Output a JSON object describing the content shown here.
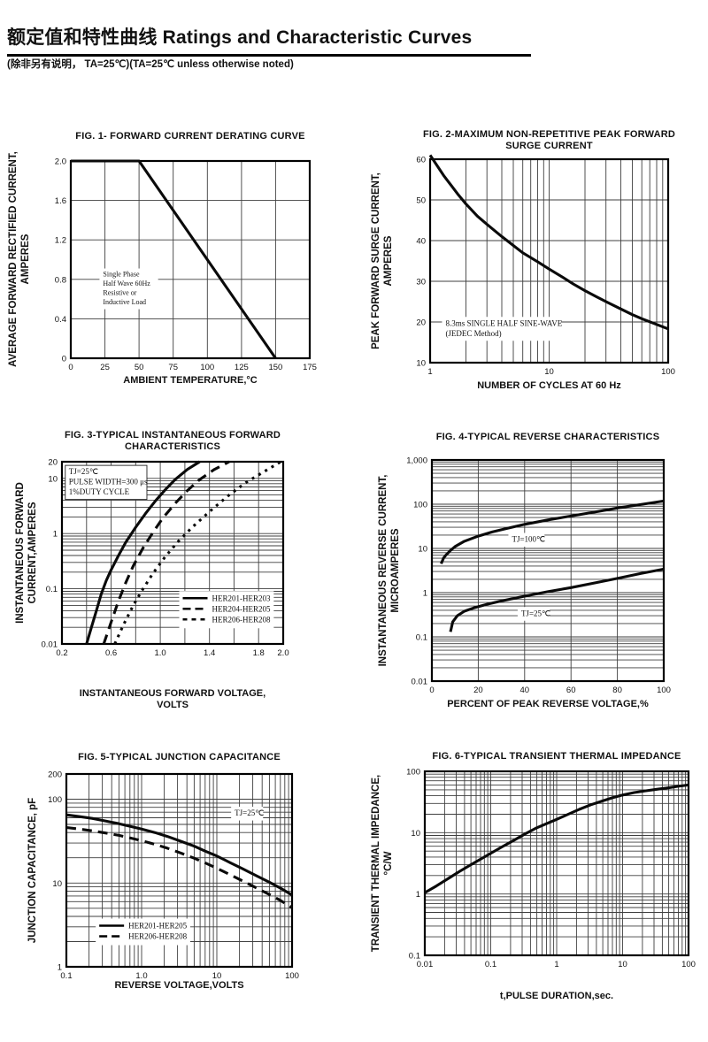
{
  "page": {
    "title_zh": "额定值和特性曲线",
    "title_en": "Ratings and Characteristic Curves",
    "subtitle": "(除非另有说明， TA=25℃)(TA=25℃  unless otherwise noted)"
  },
  "chart_data": [
    {
      "type": "line",
      "title": "FIG. 1- FORWARD CURRENT DERATING CURVE",
      "xlabel": "AMBIENT TEMPERATURE,°C",
      "ylabel": "AVERAGE FORWARD RECTIFIED CURRENT,\nAMPERES",
      "x": {
        "scale": "linear",
        "min": 0,
        "max": 175,
        "gridStep": 25,
        "ticks": [
          [
            "0",
            0
          ],
          [
            "25",
            25
          ],
          [
            "50",
            50
          ],
          [
            "75",
            75
          ],
          [
            "100",
            100
          ],
          [
            "125",
            125
          ],
          [
            "150",
            150
          ],
          [
            "175",
            175
          ]
        ]
      },
      "y": {
        "scale": "linear",
        "min": 0,
        "max": 2.0,
        "gridStep": 0.4,
        "ticks": [
          [
            "0",
            0
          ],
          [
            "0.4",
            0.4
          ],
          [
            "0.8",
            0.8
          ],
          [
            "1.2",
            1.2
          ],
          [
            "1.6",
            1.6
          ],
          [
            "2.0",
            2.0
          ]
        ]
      },
      "series": [
        {
          "name": "derating-curve",
          "dash": "solid",
          "points": [
            [
              0,
              2.0
            ],
            [
              50,
              2.0
            ],
            [
              150,
              0
            ]
          ]
        }
      ],
      "annotations": [
        {
          "fx": 0.12,
          "fy": 0.545,
          "size": 8,
          "text": "Single Phase\nHalf Wave 60Hz\nResistive or\nInductive Load"
        }
      ]
    },
    {
      "type": "line",
      "title": "FIG. 2-MAXIMUM NON-REPETITIVE PEAK FORWARD\nSURGE CURRENT",
      "xlabel": "NUMBER OF CYCLES AT 60 Hz",
      "ylabel": "PEAK  FORWARD SURGE CURRENT,\nAMPERES",
      "x": {
        "scale": "log",
        "min": 1,
        "max": 100,
        "ticks": [
          [
            "1",
            1
          ],
          [
            "10",
            10
          ],
          [
            "100",
            100
          ]
        ]
      },
      "y": {
        "scale": "linear",
        "min": 10,
        "max": 60,
        "gridStep": 10,
        "ticks": [
          [
            "10",
            10
          ],
          [
            "20",
            20
          ],
          [
            "30",
            30
          ],
          [
            "40",
            40
          ],
          [
            "50",
            50
          ],
          [
            "60",
            60
          ]
        ]
      },
      "series": [
        {
          "name": "surge-current",
          "dash": "solid",
          "points": [
            [
              1,
              61
            ],
            [
              1.3,
              56
            ],
            [
              1.7,
              51.5
            ],
            [
              2,
              49
            ],
            [
              2.5,
              46
            ],
            [
              3,
              44
            ],
            [
              4,
              41
            ],
            [
              5,
              38.8
            ],
            [
              6,
              37
            ],
            [
              8,
              34.8
            ],
            [
              10,
              33
            ],
            [
              13,
              31
            ],
            [
              16,
              29.3
            ],
            [
              20,
              27.7
            ],
            [
              25,
              26.2
            ],
            [
              30,
              25
            ],
            [
              40,
              23.2
            ],
            [
              50,
              21.8
            ],
            [
              60,
              20.8
            ],
            [
              80,
              19.4
            ],
            [
              100,
              18.3
            ]
          ]
        }
      ],
      "annotations": [
        {
          "fx": 0.05,
          "fy": 0.775,
          "size": 9,
          "text": "8.3ms SINGLE HALF SINE-WAVE\n(JEDEC Method)"
        }
      ]
    },
    {
      "type": "line",
      "title": "FIG. 3-TYPICAL INSTANTANEOUS FORWARD\nCHARACTERISTICS",
      "xlabel": "INSTANTANEOUS FORWARD VOLTAGE,\nVOLTS",
      "ylabel": "INSTANTANEOUS FORWARD\nCURRENT,AMPERES",
      "x": {
        "scale": "linear",
        "min": 0.2,
        "max": 2.0,
        "gridStep": 0.2,
        "ticks": [
          [
            "0.2",
            0.2
          ],
          [
            "0.6",
            0.6
          ],
          [
            "1.0",
            1.0
          ],
          [
            "1.4",
            1.4
          ],
          [
            "1.8",
            1.8
          ],
          [
            "2.0",
            2.0
          ]
        ]
      },
      "y": {
        "scale": "log",
        "min": 0.01,
        "max": 20,
        "ticks": [
          [
            "0.01",
            0.01
          ],
          [
            "0.1",
            0.1
          ],
          [
            "1",
            1
          ],
          [
            "10",
            10
          ],
          [
            "20",
            20
          ]
        ]
      },
      "series": [
        {
          "name": "HER201-HER203",
          "dash": "solid",
          "points": [
            [
              0.4,
              0.01
            ],
            [
              0.44,
              0.02
            ],
            [
              0.48,
              0.04
            ],
            [
              0.52,
              0.08
            ],
            [
              0.56,
              0.14
            ],
            [
              0.6,
              0.22
            ],
            [
              0.66,
              0.4
            ],
            [
              0.72,
              0.7
            ],
            [
              0.8,
              1.3
            ],
            [
              0.88,
              2.3
            ],
            [
              0.96,
              3.9
            ],
            [
              1.04,
              6.2
            ],
            [
              1.12,
              9.5
            ],
            [
              1.22,
              14.5
            ],
            [
              1.32,
              20
            ]
          ]
        },
        {
          "name": "HER204-HER205",
          "dash": "dash",
          "points": [
            [
              0.54,
              0.01
            ],
            [
              0.6,
              0.025
            ],
            [
              0.66,
              0.06
            ],
            [
              0.72,
              0.13
            ],
            [
              0.78,
              0.26
            ],
            [
              0.86,
              0.55
            ],
            [
              0.94,
              1.05
            ],
            [
              1.02,
              1.9
            ],
            [
              1.12,
              3.5
            ],
            [
              1.22,
              6.0
            ],
            [
              1.32,
              9.5
            ],
            [
              1.44,
              14.5
            ],
            [
              1.56,
              20
            ]
          ]
        },
        {
          "name": "HER206-HER208",
          "dash": "shortdash",
          "points": [
            [
              0.63,
              0.01
            ],
            [
              0.7,
              0.022
            ],
            [
              0.78,
              0.05
            ],
            [
              0.86,
              0.1
            ],
            [
              0.94,
              0.19
            ],
            [
              1.04,
              0.38
            ],
            [
              1.14,
              0.7
            ],
            [
              1.26,
              1.3
            ],
            [
              1.4,
              2.5
            ],
            [
              1.55,
              4.8
            ],
            [
              1.7,
              8.5
            ],
            [
              1.85,
              13.5
            ],
            [
              1.98,
              20
            ]
          ]
        }
      ],
      "annotations": [
        {
          "fx": 0.015,
          "fy": 0.02,
          "size": 9,
          "box": true,
          "text": "TJ=25℃\nPULSE WIDTH=300 μs\n1%DUTY CYCLE"
        }
      ],
      "legend": {
        "fx": 0.53,
        "fy": 0.71,
        "items": [
          {
            "label": "HER201-HER203",
            "dash": "solid"
          },
          {
            "label": "HER204-HER205",
            "dash": "dash"
          },
          {
            "label": "HER206-HER208",
            "dash": "shortdash"
          }
        ]
      }
    },
    {
      "type": "line",
      "title": "FIG. 4-TYPICAL REVERSE CHARACTERISTICS",
      "xlabel": "PERCENT OF PEAK REVERSE VOLTAGE,%",
      "ylabel": "INSTANTANEOUS REVERSE CURRENT,\nMICROAMPERES",
      "x": {
        "scale": "linear",
        "min": 0,
        "max": 100,
        "gridStep": 20,
        "ticks": [
          [
            "0",
            0
          ],
          [
            "20",
            20
          ],
          [
            "40",
            40
          ],
          [
            "60",
            60
          ],
          [
            "80",
            80
          ],
          [
            "100",
            100
          ]
        ]
      },
      "y": {
        "scale": "log",
        "min": 0.01,
        "max": 1000,
        "ticks": [
          [
            "0.01",
            0.01
          ],
          [
            "0.1",
            0.1
          ],
          [
            "1",
            1
          ],
          [
            "10",
            10
          ],
          [
            "100",
            100
          ],
          [
            "1,000",
            1000
          ]
        ]
      },
      "series": [
        {
          "name": "TJ=100C",
          "dash": "solid",
          "points": [
            [
              4,
              4.5
            ],
            [
              5,
              6
            ],
            [
              6,
              7
            ],
            [
              8,
              9
            ],
            [
              10,
              11
            ],
            [
              14,
              14.5
            ],
            [
              20,
              19
            ],
            [
              26,
              23.5
            ],
            [
              32,
              28
            ],
            [
              40,
              35
            ],
            [
              50,
              44
            ],
            [
              60,
              54
            ],
            [
              70,
              66
            ],
            [
              80,
              82
            ],
            [
              90,
              98
            ],
            [
              100,
              118
            ]
          ]
        },
        {
          "name": "TJ=25C",
          "dash": "solid",
          "points": [
            [
              8,
              0.13
            ],
            [
              9,
              0.22
            ],
            [
              11,
              0.3
            ],
            [
              14,
              0.38
            ],
            [
              18,
              0.45
            ],
            [
              24,
              0.55
            ],
            [
              30,
              0.65
            ],
            [
              40,
              0.83
            ],
            [
              50,
              1.05
            ],
            [
              60,
              1.3
            ],
            [
              70,
              1.65
            ],
            [
              80,
              2.1
            ],
            [
              90,
              2.7
            ],
            [
              100,
              3.4
            ]
          ]
        }
      ],
      "annotations": [
        {
          "fx": 0.33,
          "fy": 0.33,
          "size": 9,
          "text": "TJ=100℃"
        },
        {
          "fx": 0.37,
          "fy": 0.665,
          "size": 9,
          "text": "TJ=25℃"
        }
      ]
    },
    {
      "type": "line",
      "title": "FIG. 5-TYPICAL JUNCTION CAPACITANCE",
      "xlabel": "REVERSE VOLTAGE,VOLTS",
      "ylabel": "JUNCTION CAPACITANCE, pF",
      "x": {
        "scale": "log",
        "min": 0.1,
        "max": 100,
        "ticks": [
          [
            "0.1",
            0.1
          ],
          [
            "1.0",
            1
          ],
          [
            "10",
            10
          ],
          [
            "100",
            100
          ]
        ]
      },
      "y": {
        "scale": "log",
        "min": 1,
        "max": 200,
        "ticks": [
          [
            "1",
            1
          ],
          [
            "10",
            10
          ],
          [
            "100",
            100
          ],
          [
            "200",
            200
          ]
        ]
      },
      "series": [
        {
          "name": "HER201-HER205",
          "dash": "solid",
          "points": [
            [
              0.1,
              65
            ],
            [
              0.15,
              62
            ],
            [
              0.22,
              59
            ],
            [
              0.33,
              55
            ],
            [
              0.5,
              51
            ],
            [
              0.7,
              47.5
            ],
            [
              1,
              44
            ],
            [
              1.5,
              40
            ],
            [
              2.2,
              36
            ],
            [
              3.3,
              31.5
            ],
            [
              5,
              27.5
            ],
            [
              7,
              24
            ],
            [
              10,
              21
            ],
            [
              15,
              17.5
            ],
            [
              22,
              14.8
            ],
            [
              33,
              12.3
            ],
            [
              50,
              10.2
            ],
            [
              70,
              8.7
            ],
            [
              100,
              7.2
            ]
          ]
        },
        {
          "name": "HER206-HER208",
          "dash": "dash",
          "points": [
            [
              0.1,
              46
            ],
            [
              0.15,
              44
            ],
            [
              0.22,
              42
            ],
            [
              0.33,
              39.5
            ],
            [
              0.5,
              37
            ],
            [
              0.7,
              34.5
            ],
            [
              1,
              32
            ],
            [
              1.5,
              29
            ],
            [
              2.2,
              26
            ],
            [
              3.3,
              22.8
            ],
            [
              5,
              19.8
            ],
            [
              7,
              17.4
            ],
            [
              10,
              15
            ],
            [
              15,
              12.6
            ],
            [
              22,
              10.6
            ],
            [
              33,
              8.8
            ],
            [
              50,
              7.3
            ],
            [
              70,
              6.2
            ],
            [
              100,
              5.1
            ]
          ]
        }
      ],
      "annotations": [
        {
          "fx": 0.73,
          "fy": 0.17,
          "size": 9,
          "text": "TJ=25℃"
        }
      ],
      "legend": {
        "fx": 0.13,
        "fy": 0.75,
        "items": [
          {
            "label": "HER201-HER205",
            "dash": "solid"
          },
          {
            "label": "HER206-HER208",
            "dash": "dash"
          }
        ]
      }
    },
    {
      "type": "line",
      "title": "FIG. 6-TYPICAL TRANSIENT THERMAL IMPEDANCE",
      "xlabel": "t,PULSE DURATION,sec.",
      "ylabel": "TRANSIENT THERMAL IMPEDANCE,\n°C/W",
      "x": {
        "scale": "log",
        "min": 0.01,
        "max": 100,
        "ticks": [
          [
            "0.01",
            0.01
          ],
          [
            "0.1",
            0.1
          ],
          [
            "1",
            1
          ],
          [
            "10",
            10
          ],
          [
            "100",
            100
          ]
        ]
      },
      "y": {
        "scale": "log",
        "min": 0.1,
        "max": 100,
        "ticks": [
          [
            "0.1",
            0.1
          ],
          [
            "1",
            1
          ],
          [
            "10",
            10
          ],
          [
            "100",
            100
          ]
        ]
      },
      "series": [
        {
          "name": "thermal-impedance",
          "dash": "solid",
          "points": [
            [
              0.01,
              1.05
            ],
            [
              0.015,
              1.35
            ],
            [
              0.022,
              1.75
            ],
            [
              0.033,
              2.3
            ],
            [
              0.05,
              3.0
            ],
            [
              0.07,
              3.7
            ],
            [
              0.1,
              4.6
            ],
            [
              0.15,
              5.9
            ],
            [
              0.22,
              7.4
            ],
            [
              0.33,
              9.5
            ],
            [
              0.5,
              12
            ],
            [
              0.7,
              14
            ],
            [
              1,
              16.5
            ],
            [
              1.5,
              20
            ],
            [
              2.2,
              24
            ],
            [
              3.3,
              28.5
            ],
            [
              5,
              33
            ],
            [
              7,
              37
            ],
            [
              10,
              41
            ],
            [
              15,
              45
            ],
            [
              22,
              48
            ],
            [
              33,
              51
            ],
            [
              50,
              54
            ],
            [
              70,
              57
            ],
            [
              100,
              60
            ]
          ]
        }
      ],
      "annotations": []
    }
  ]
}
